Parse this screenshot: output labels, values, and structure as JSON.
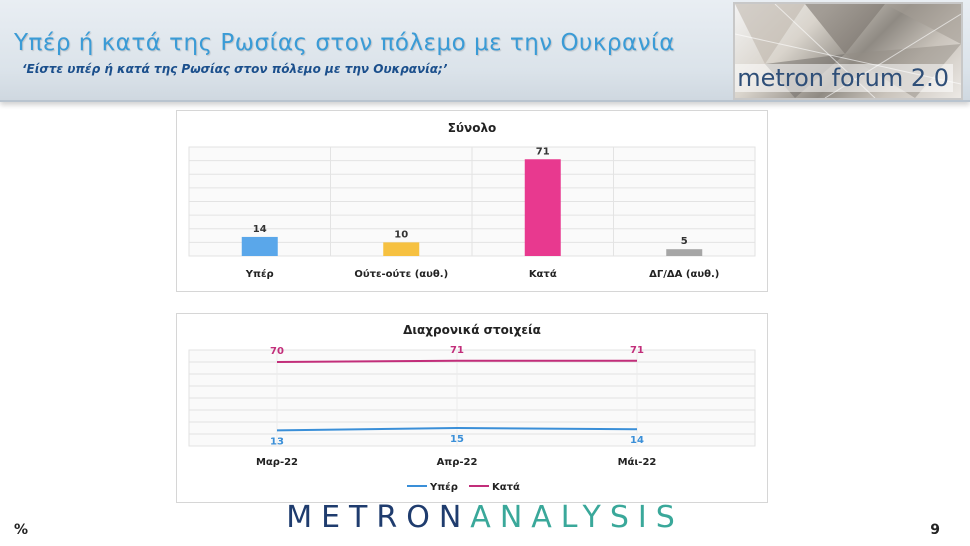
{
  "header": {
    "title": "Υπέρ ή κατά της Ρωσίας στον πόλεμο με την Ουκρανία",
    "subtitle": "‘Είστε υπέρ ή κατά της Ρωσίας στον πόλεμο με την Ουκρανία;’",
    "logo_text": "metron forum 2.0"
  },
  "footer": {
    "brand_part1": "METRON",
    "brand_part2": "ANALYSIS",
    "percent_symbol": "%",
    "page_number": "9"
  },
  "chart_data": [
    {
      "type": "bar",
      "title": "Σύνολο",
      "categories": [
        "Υπέρ",
        "Ούτε-ούτε (αυθ.)",
        "Κατά",
        "ΔΓ/ΔΑ (αυθ.)"
      ],
      "values": [
        14,
        10,
        71,
        5
      ],
      "colors": [
        "#5aa7ea",
        "#f6c141",
        "#e8398f",
        "#a6a6a6"
      ],
      "ylim": [
        0,
        80
      ],
      "grid": true
    },
    {
      "type": "line",
      "title": "Διαχρονικά στοιχεία",
      "x": [
        "Μαρ-22",
        "Απρ-22",
        "Μάι-22"
      ],
      "series": [
        {
          "name": "Υπέρ",
          "values": [
            13,
            15,
            14
          ],
          "color": "#3a8fd8"
        },
        {
          "name": "Κατά",
          "values": [
            70,
            71,
            71
          ],
          "color": "#c22e7a"
        }
      ],
      "ylim": [
        0,
        80
      ],
      "grid": true,
      "legend": "bottom"
    }
  ]
}
